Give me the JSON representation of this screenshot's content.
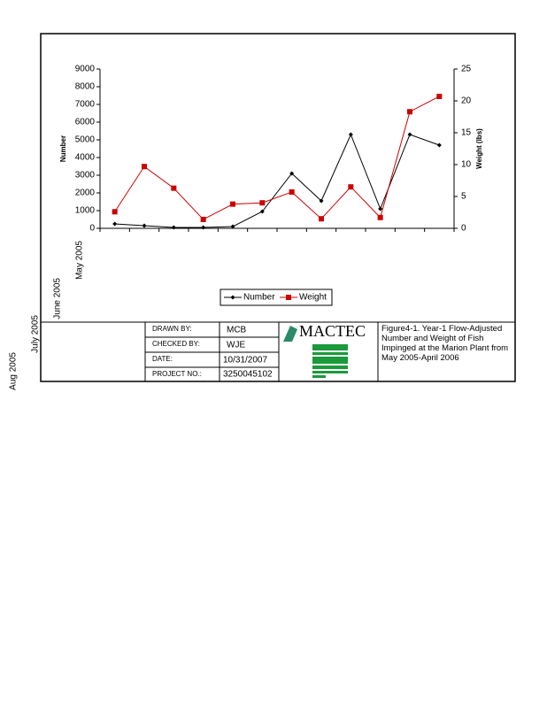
{
  "chart_data": {
    "type": "line",
    "categories": [
      "May 2005",
      "June 2005",
      "July 2005",
      "Aug 2005",
      null,
      null,
      null,
      null,
      null,
      null,
      null,
      null
    ],
    "y_label": "Number",
    "y2_label": "Weight (lbs)",
    "series": [
      {
        "name": "Number",
        "color": "#000000",
        "marker": "diamond",
        "values": [
          250,
          150,
          50,
          50,
          100,
          950,
          3100,
          1550,
          5300,
          1100,
          5300,
          4700
        ]
      },
      {
        "name": "Weight",
        "color": "#cc0000",
        "marker": "square",
        "axis": "y2",
        "values": [
          2.6,
          9.7,
          6.3,
          1.4,
          3.8,
          4.0,
          5.7,
          1.5,
          6.5,
          1.7,
          18.3,
          20.7
        ]
      }
    ],
    "ylim": [
      0,
      9000
    ],
    "yticks": [
      0,
      1000,
      2000,
      3000,
      4000,
      5000,
      6000,
      7000,
      8000,
      9000
    ],
    "y2lim": [
      0,
      25
    ],
    "y2ticks": [
      0,
      5,
      10,
      15,
      20,
      25
    ],
    "legend": "bottom"
  },
  "title_block": {
    "drawn_by_label": "DRAWN BY:",
    "drawn_by": "MCB",
    "checked_by_label": "CHECKED BY:",
    "checked_by": "WJE",
    "date_label": "DATE:",
    "date": "10/31/2007",
    "project_label": "PROJECT NO.:",
    "project": "3250045102",
    "logo": "MACTEC",
    "caption": "Figure4-1.  Year-1 Flow-Adjusted Number and Weight of Fish Impinged at the Marion Plant from May 2005-April 2006"
  }
}
